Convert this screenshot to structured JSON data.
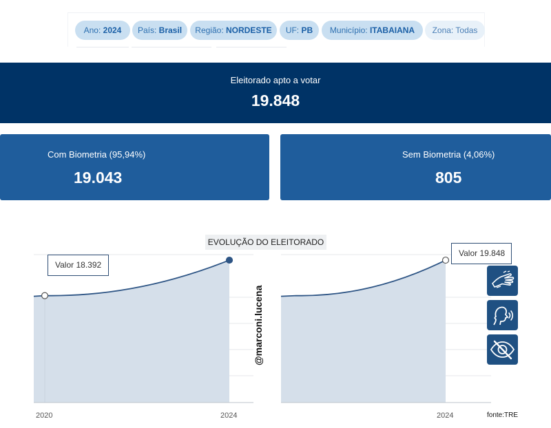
{
  "filters": [
    {
      "label": "Ano:",
      "value": "2024"
    },
    {
      "label": "País:",
      "value": "Brasil"
    },
    {
      "label": "Região:",
      "value": "NORDESTE"
    },
    {
      "label": "UF:",
      "value": "PB"
    },
    {
      "label": "Município:",
      "value": "ITABAIANA"
    },
    {
      "label": "Zona:",
      "value": "Todas"
    }
  ],
  "summary": {
    "total_label": "Eleitorado apto a votar",
    "total_value": "19.848",
    "with_bio_label": "Com Biometria (95,94%)",
    "with_bio_value": "19.043",
    "without_bio_label": "Sem Biometria (4,06%)",
    "without_bio_value": "805"
  },
  "chart": {
    "title": "EVOLUÇÃO DO ELEITORADO",
    "watermark": "@marconi.lucena",
    "source": "fonte:TRE",
    "tooltip_left": {
      "label": "Valor",
      "value": "18.392"
    },
    "tooltip_right": {
      "label": "Valor",
      "value": "19.848"
    }
  },
  "chart_data": {
    "type": "area",
    "title": "EVOLUÇÃO DO ELEITORADO",
    "x": [
      2020,
      2024
    ],
    "series": [
      {
        "name": "Eleitorado",
        "values": [
          18392,
          19848
        ]
      }
    ],
    "tick_labels": [
      "2020",
      "2024"
    ],
    "colors": {
      "line": "#2e5585",
      "fill": "#d5dfea"
    }
  },
  "accessibility": [
    {
      "icon": "sign-language-icon"
    },
    {
      "icon": "audio-description-icon"
    },
    {
      "icon": "eye-slash-icon"
    }
  ]
}
